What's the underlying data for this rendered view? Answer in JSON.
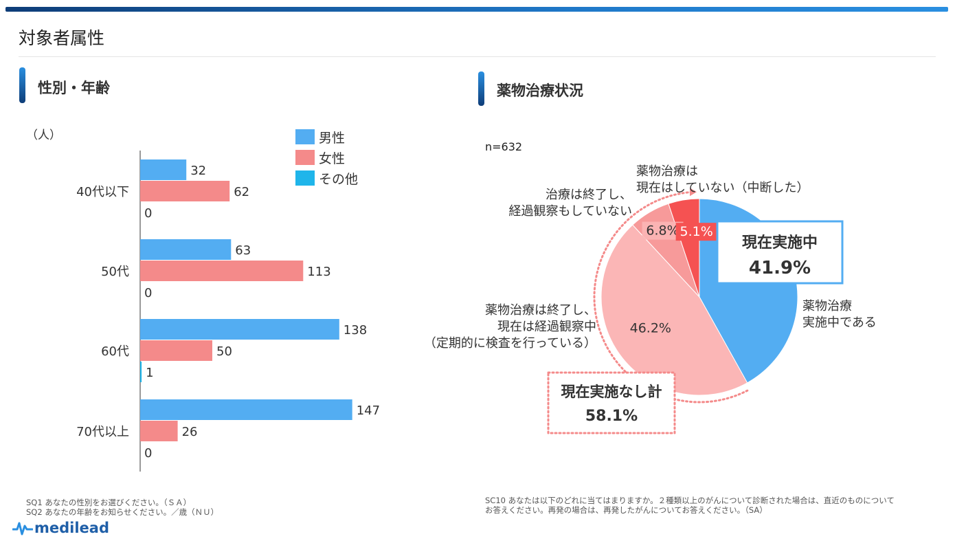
{
  "page": {
    "title": "対象者属性"
  },
  "sections": {
    "left_title": "性別・年齢",
    "right_title": "薬物治療状況"
  },
  "colors": {
    "male": "#53ADF2",
    "female": "#F48A8A",
    "other": "#1FB5EA",
    "pie_blue": "#53ADF2",
    "pie_light": "#FBB6B6",
    "pie_mid": "#F79A9A",
    "pie_red": "#F55252"
  },
  "chart_data": [
    {
      "type": "bar",
      "orientation": "horizontal",
      "unit_label": "（人）",
      "categories": [
        "40代以下",
        "50代",
        "60代",
        "70代以上"
      ],
      "series": [
        {
          "name": "男性",
          "values": [
            32,
            63,
            138,
            147
          ]
        },
        {
          "name": "女性",
          "values": [
            62,
            113,
            50,
            26
          ]
        },
        {
          "name": "その他",
          "values": [
            0,
            0,
            1,
            0
          ]
        }
      ],
      "xlim": [
        0,
        200
      ],
      "legend": "top-right",
      "grid": false
    },
    {
      "type": "pie",
      "n_label": "n=632",
      "slices": [
        {
          "label": "薬物治療実施中である",
          "value": 41.9,
          "pct_label": "41.9%"
        },
        {
          "label": "薬物治療は終了し、現在は経過観察中（定期的に検査を行っている）",
          "value": 46.2,
          "pct_label": "46.2%"
        },
        {
          "label": "治療は終了し、経過観察もしていない",
          "value": 6.8,
          "pct_label": "6.8%"
        },
        {
          "label": "薬物治療は現在はしていない（中断した）",
          "value": 5.1,
          "pct_label": "5.1%"
        }
      ],
      "callouts": {
        "current_title": "現在実施中",
        "current_pct": "41.9%",
        "none_title": "現在実施なし計",
        "none_pct": "58.1%"
      }
    }
  ],
  "pie_notes": {
    "blue_line1": "薬物治療",
    "blue_line2": "実施中である",
    "light_line1": "薬物治療は終了し、",
    "light_line2": "現在は経過観察中",
    "light_line3": "（定期的に検査を行っている）",
    "mid_line1": "治療は終了し、",
    "mid_line2": "経過観察もしていない",
    "red_line1": "薬物治療は",
    "red_line2": "現在はしていない（中断した）"
  },
  "footnotes": {
    "left_1": "SQ1  あなたの性別をお選びください。（ＳＡ）",
    "left_2": "SQ2  あなたの年齢をお知らせください。／歳（ＮＵ）",
    "right_1": "SC10  あなたは以下のどれに当てはまりますか。２種類以上のがんについて診断された場合は、直近のものについて",
    "right_2": "お答えください。再発の場合は、再発したがんについてお答えください。（SA）"
  },
  "logo": {
    "text": "medilead"
  }
}
